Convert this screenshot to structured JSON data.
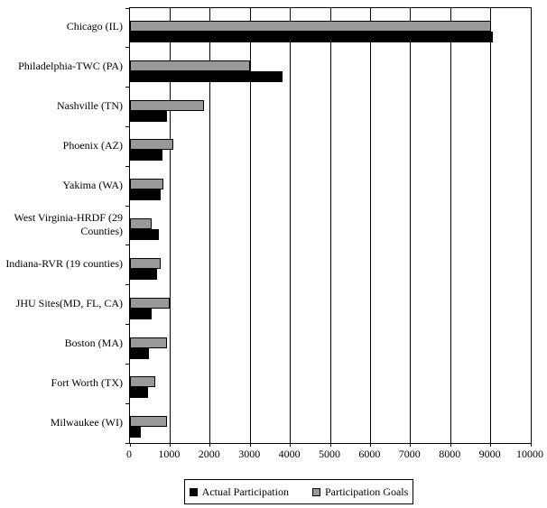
{
  "chart_data": {
    "type": "bar",
    "orientation": "horizontal",
    "title": "",
    "xlabel": "",
    "ylabel": "",
    "grid": true,
    "legend_position": "bottom",
    "xlim": [
      0,
      10000
    ],
    "x_ticks": [
      0,
      1000,
      2000,
      3000,
      4000,
      5000,
      6000,
      7000,
      8000,
      9000,
      10000
    ],
    "categories": [
      "Chicago (IL)",
      "Philadelphia-TWC (PA)",
      "Nashville (TN)",
      "Phoenix (AZ)",
      "Yakima (WA)",
      "West Virginia-HRDF (29 Counties)",
      "Indiana-RVR (19 counties)",
      "JHU Sites(MD, FL, CA)",
      "Boston (MA)",
      "Fort Worth (TX)",
      "Milwaukee (WI)"
    ],
    "series": [
      {
        "name": "Actual Participation",
        "color": "#000000",
        "values": [
          9050,
          3800,
          925,
          800,
          775,
          725,
          675,
          550,
          475,
          440,
          280
        ]
      },
      {
        "name": "Participation Goals",
        "color": "#999999",
        "values": [
          9000,
          3000,
          1850,
          1075,
          825,
          550,
          775,
          1000,
          925,
          625,
          925
        ]
      }
    ]
  }
}
